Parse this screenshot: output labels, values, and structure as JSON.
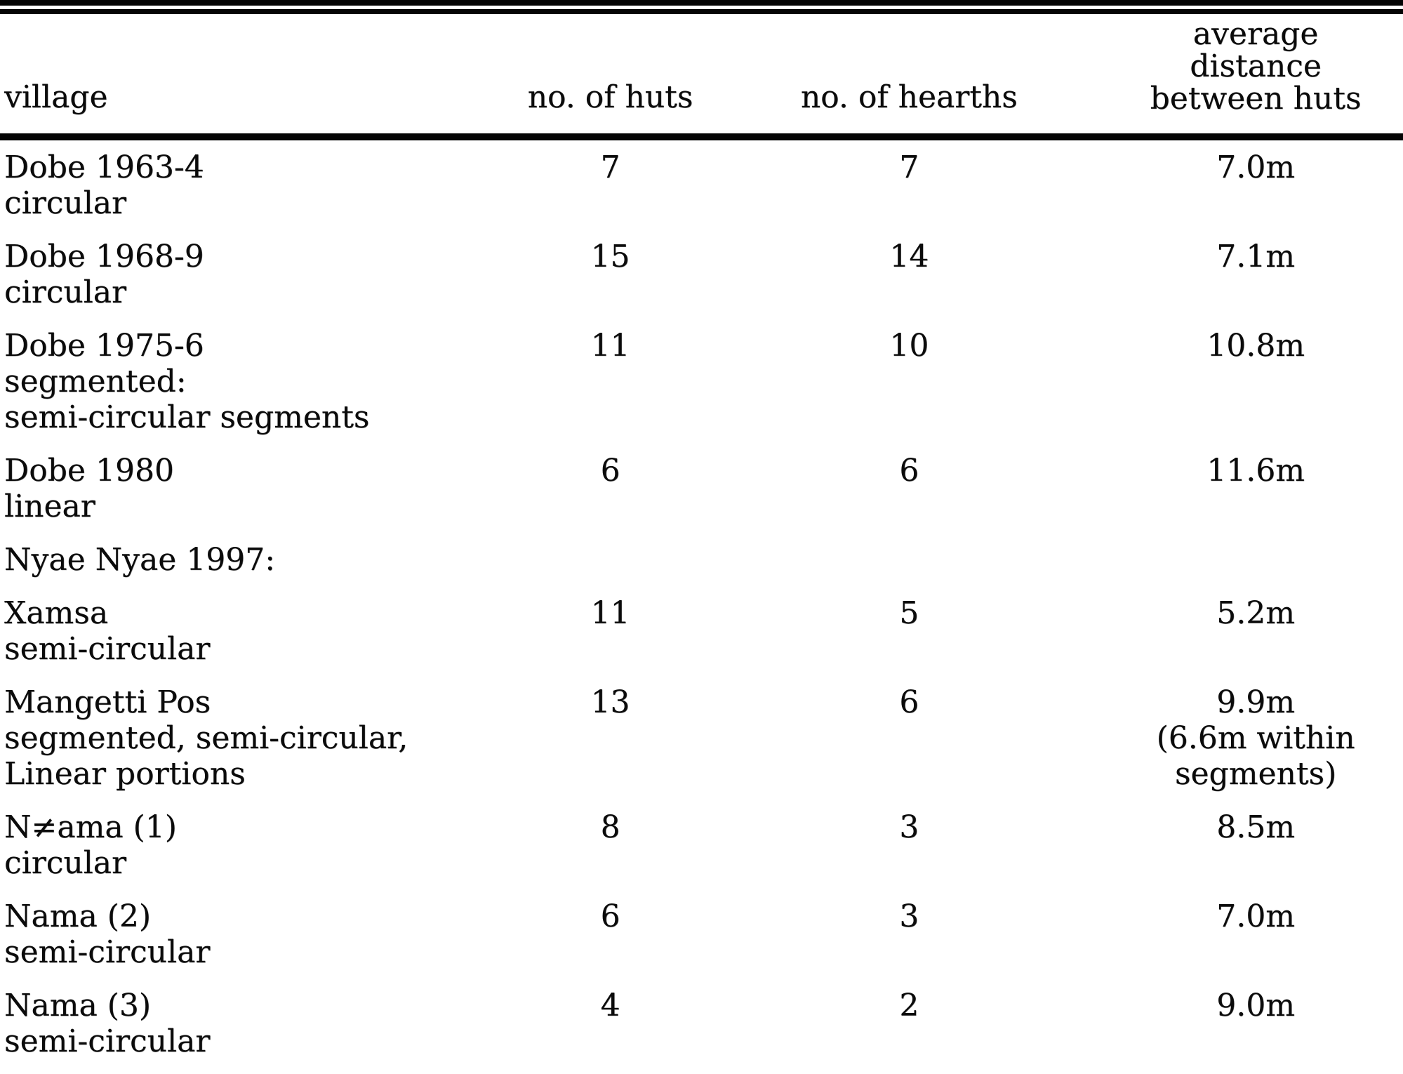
{
  "document": {
    "kind": "scanned-table",
    "colors": {
      "ink": "#0b0b0b",
      "paper": "#ffffff",
      "rule": "#050505"
    }
  },
  "table": {
    "columns": [
      {
        "key": "village",
        "label": "village"
      },
      {
        "key": "huts",
        "label": "no. of huts"
      },
      {
        "key": "hearths",
        "label": "no. of hearths"
      },
      {
        "key": "distance",
        "label_lines": [
          "average",
          "distance",
          "between huts"
        ]
      }
    ],
    "rows": [
      {
        "village_lines": [
          "Dobe 1963-4",
          "circular"
        ],
        "huts": "7",
        "hearths": "7",
        "distance_lines": [
          "7.0m"
        ]
      },
      {
        "village_lines": [
          "Dobe 1968-9",
          "circular"
        ],
        "huts": "15",
        "hearths": "14",
        "distance_lines": [
          "7.1m"
        ]
      },
      {
        "village_lines": [
          "Dobe 1975-6",
          "segmented:",
          "semi-circular segments"
        ],
        "huts": "11",
        "hearths": "10",
        "distance_lines": [
          "10.8m"
        ]
      },
      {
        "village_lines": [
          "Dobe 1980",
          "linear"
        ],
        "huts": "6",
        "hearths": "6",
        "distance_lines": [
          "11.6m"
        ]
      },
      {
        "village_lines": [
          "Nyae Nyae 1997:"
        ],
        "huts": "",
        "hearths": "",
        "distance_lines": []
      },
      {
        "village_lines": [
          "Xamsa",
          "semi-circular"
        ],
        "huts": "11",
        "hearths": "5",
        "distance_lines": [
          "5.2m"
        ]
      },
      {
        "village_lines": [
          "Mangetti Pos",
          "segmented, semi-circular,",
          "Linear portions"
        ],
        "huts": "13",
        "hearths": "6",
        "distance_lines": [
          "9.9m",
          "(6.6m within",
          "segments)"
        ]
      },
      {
        "village_lines": [
          "N≠ama (1)",
          "circular"
        ],
        "huts": "8",
        "hearths": "3",
        "distance_lines": [
          "8.5m"
        ]
      },
      {
        "village_lines": [
          "Nama (2)",
          "semi-circular"
        ],
        "huts": "6",
        "hearths": "3",
        "distance_lines": [
          "7.0m"
        ]
      },
      {
        "village_lines": [
          "Nama (3)",
          "semi-circular"
        ],
        "huts": "4",
        "hearths": "2",
        "distance_lines": [
          "9.0m"
        ]
      }
    ]
  }
}
